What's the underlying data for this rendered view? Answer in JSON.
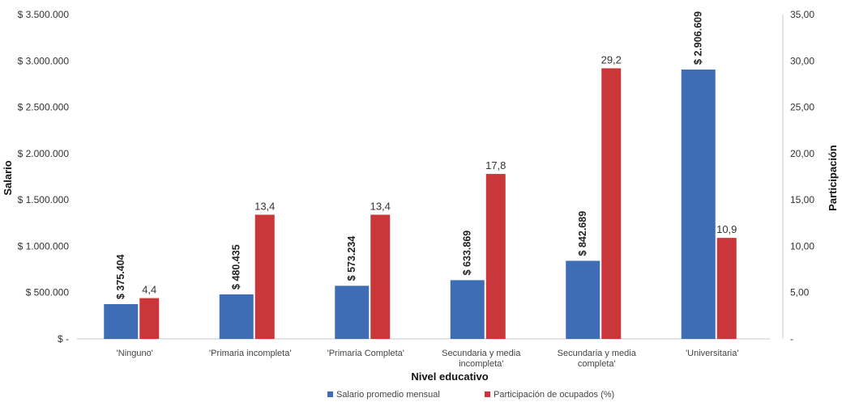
{
  "chart_data": {
    "type": "bar",
    "xlabel": "Nivel educativo",
    "ylabel": "Salario",
    "y2label": "Participación",
    "categories": [
      [
        "'Ninguno'"
      ],
      [
        "'Primaria incompleta'"
      ],
      [
        "'Primaria Completa'"
      ],
      [
        "Secundaria y media",
        "incompleta'"
      ],
      [
        "Secundaria y media",
        "completa'"
      ],
      [
        "'Universitaria'"
      ]
    ],
    "ylim": [
      0,
      3500000
    ],
    "y2lim": [
      0,
      35
    ],
    "yticks": [
      "$ -",
      "$ 500.000",
      "$ 1.000.000",
      "$ 1.500.000",
      "$ 2.000.000",
      "$ 2.500.000",
      "$ 3.000.000",
      "$ 3.500.000"
    ],
    "y2ticks": [
      "-",
      "5,00",
      "10,00",
      "15,00",
      "20,00",
      "25,00",
      "30,00",
      "35,00"
    ],
    "series": [
      {
        "name": "Salario promedio mensual",
        "axis": "left",
        "color": "#3f6db5",
        "values": [
          375404,
          480435,
          573234,
          633869,
          842689,
          2906609
        ],
        "labels": [
          "$ 375.404",
          "$ 480.435",
          "$ 573.234",
          "$ 633.869",
          "$ 842.689",
          "$ 2.906.609"
        ]
      },
      {
        "name": "Participación de ocupados (%)",
        "axis": "right",
        "color": "#c9373a",
        "values": [
          4.4,
          13.4,
          13.4,
          17.8,
          29.2,
          10.9
        ],
        "labels": [
          "4,4",
          "13,4",
          "13,4",
          "17,8",
          "29,2",
          "10,9"
        ]
      }
    ],
    "legend": "bottom",
    "grid": false
  }
}
